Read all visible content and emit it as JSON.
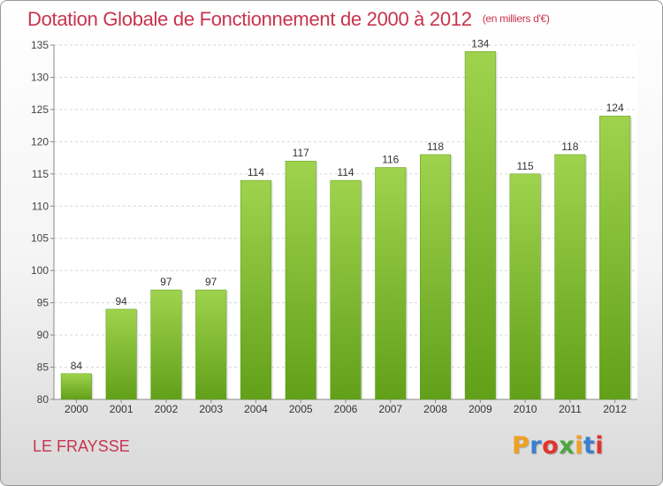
{
  "header": {
    "title": "Dotation Globale de Fonctionnement de 2000 à 2012",
    "unit": "(en milliers d'€)"
  },
  "footer": {
    "commune": "LE FRAYSSE",
    "logo_text": "Proxiti",
    "logo_colors": [
      "#f0a020",
      "#3a7fd0",
      "#e0342c",
      "#4aa83c",
      "#f0a020",
      "#3a7fd0",
      "#e0342c"
    ]
  },
  "colors": {
    "title": "#c8344f",
    "bar_top": "#9fd34d",
    "bar_bottom": "#62a01a"
  },
  "chart_data": {
    "type": "bar",
    "categories": [
      "2000",
      "2001",
      "2002",
      "2003",
      "2004",
      "2005",
      "2006",
      "2007",
      "2008",
      "2009",
      "2010",
      "2011",
      "2012"
    ],
    "values": [
      84,
      94,
      97,
      97,
      114,
      117,
      114,
      116,
      118,
      134,
      115,
      118,
      124
    ],
    "ylim": [
      80,
      135
    ],
    "yticks": [
      80,
      85,
      90,
      95,
      100,
      105,
      110,
      115,
      120,
      125,
      130,
      135
    ],
    "grid": true,
    "legend": "none"
  }
}
